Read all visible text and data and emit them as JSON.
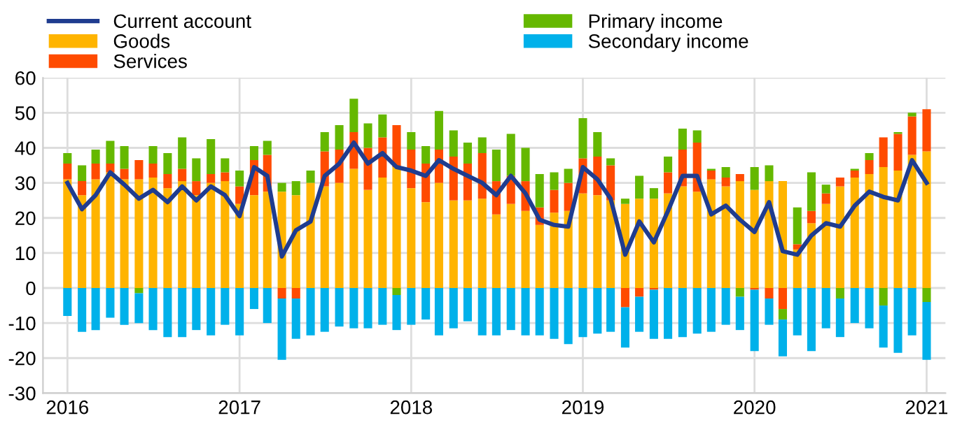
{
  "chart_data": {
    "type": "bar",
    "stacked": true,
    "x": [
      "2016-01",
      "2016-02",
      "2016-03",
      "2016-04",
      "2016-05",
      "2016-06",
      "2016-07",
      "2016-08",
      "2016-09",
      "2016-10",
      "2016-11",
      "2016-12",
      "2017-01",
      "2017-02",
      "2017-03",
      "2017-04",
      "2017-05",
      "2017-06",
      "2017-07",
      "2017-08",
      "2017-09",
      "2017-10",
      "2017-11",
      "2017-12",
      "2018-01",
      "2018-02",
      "2018-03",
      "2018-04",
      "2018-05",
      "2018-06",
      "2018-07",
      "2018-08",
      "2018-09",
      "2018-10",
      "2018-11",
      "2018-12",
      "2019-01",
      "2019-02",
      "2019-03",
      "2019-04",
      "2019-05",
      "2019-06",
      "2019-07",
      "2019-08",
      "2019-09",
      "2019-10",
      "2019-11",
      "2019-12",
      "2020-01",
      "2020-02",
      "2020-03",
      "2020-04",
      "2020-05",
      "2020-06",
      "2020-07",
      "2020-08",
      "2020-09",
      "2020-10",
      "2020-11",
      "2020-12",
      "2021-01"
    ],
    "series": [
      {
        "name": "Goods",
        "color": "#ffb400",
        "values": [
          31,
          26.5,
          31,
          33,
          31,
          31,
          31.5,
          28.5,
          30.5,
          26.5,
          30,
          30.5,
          24,
          26.5,
          27.5,
          27.5,
          26.5,
          30,
          29,
          30,
          34,
          28,
          31.5,
          34.5,
          28.5,
          24.5,
          30,
          25,
          25,
          25.5,
          21,
          24,
          22,
          18,
          21.5,
          22,
          27,
          26.5,
          25,
          24,
          25.5,
          25.5,
          27,
          29,
          27.5,
          31,
          29,
          30.5,
          28,
          30.5,
          30.5,
          11,
          18.5,
          24,
          29,
          31.5,
          32.5,
          34.5,
          33.5,
          38,
          39
        ]
      },
      {
        "name": "Services",
        "color": "#ff4b00",
        "values": [
          4.5,
          4,
          4.5,
          2.5,
          3,
          5.5,
          4,
          4,
          3.5,
          4,
          2.5,
          2.5,
          5,
          10,
          10.5,
          -3,
          -3,
          0,
          10,
          9.5,
          10.5,
          12,
          11.5,
          12,
          11,
          11,
          9.5,
          12.5,
          10.5,
          13,
          9.5,
          8,
          8.5,
          5,
          6.5,
          8,
          10,
          11,
          10,
          -5.5,
          -2.5,
          -0.5,
          6,
          10.5,
          14,
          2.5,
          2.5,
          2,
          -0.5,
          -3,
          -6,
          1.5,
          3.5,
          3,
          2.5,
          2,
          4,
          8.5,
          10.5,
          11,
          12
        ]
      },
      {
        "name": "Primary income",
        "color": "#65b800",
        "values": [
          3,
          4.5,
          4,
          6.5,
          6.5,
          -1.5,
          5,
          6,
          9,
          6.5,
          10,
          4,
          4.5,
          4,
          4,
          2.5,
          4,
          3.5,
          5.5,
          7,
          9.5,
          7,
          6.5,
          -2,
          5,
          5,
          11,
          7.5,
          6,
          4.5,
          9,
          12,
          9.5,
          9.5,
          5,
          4,
          11.5,
          7,
          2,
          1.5,
          6.5,
          3,
          4.5,
          6,
          3.5,
          0.5,
          3,
          -2.5,
          6.5,
          4.5,
          -3,
          10.5,
          11,
          2.5,
          -3,
          0.5,
          2,
          -5,
          0.5,
          1,
          -4
        ]
      },
      {
        "name": "Secondary income",
        "color": "#00b1ea",
        "values": [
          -8,
          -12.5,
          -12,
          -8.5,
          -10.5,
          -8.5,
          -12,
          -14,
          -14,
          -12,
          -13.5,
          -10.5,
          -13.5,
          -6,
          -10,
          -17.5,
          -11.5,
          -13.5,
          -12.5,
          -11,
          -11.5,
          -11.5,
          -10.5,
          -10,
          -10.5,
          -9,
          -13.5,
          -11.5,
          -9.5,
          -13.5,
          -13.5,
          -12,
          -13.5,
          -13.5,
          -14.5,
          -16,
          -14,
          -13,
          -12.5,
          -11.5,
          -10,
          -14,
          -14.5,
          -14,
          -13,
          -12.5,
          -10.5,
          -9.5,
          -17.5,
          -7.5,
          -10.5,
          -13.5,
          -18,
          -11.5,
          -11,
          -10,
          -11.5,
          -12,
          -18.5,
          -13.5,
          -16.5
        ]
      },
      {
        "name": "Current account",
        "type": "line",
        "color": "#1f3c8f",
        "values": [
          30,
          22.5,
          26.5,
          33,
          29.5,
          25.5,
          28,
          24.5,
          29,
          25,
          29,
          26.5,
          20.5,
          34.5,
          32,
          9,
          16.5,
          19,
          32,
          35.5,
          41.5,
          35.5,
          38.5,
          34.5,
          33.5,
          32,
          36.5,
          34,
          32,
          30,
          26.5,
          32,
          27,
          19.5,
          18,
          17.5,
          34.5,
          31,
          25.5,
          9.5,
          19,
          13,
          22,
          32,
          32,
          21,
          23.5,
          19.5,
          16,
          24.5,
          10.5,
          9.5,
          15,
          18.5,
          17.5,
          23.5,
          27.5,
          26,
          25,
          36.5,
          30
        ]
      }
    ],
    "xlim": [
      "2015-11-10",
      "2021-02-10"
    ],
    "xticks": [
      {
        "value": "2016-01",
        "label": "2016"
      },
      {
        "value": "2017-01",
        "label": "2017"
      },
      {
        "value": "2018-01",
        "label": "2018"
      },
      {
        "value": "2019-01",
        "label": "2019"
      },
      {
        "value": "2020-01",
        "label": "2020"
      },
      {
        "value": "2021-01",
        "label": "2021"
      }
    ],
    "ylim": [
      -30,
      60
    ],
    "yticks": [
      -30,
      -20,
      -10,
      0,
      10,
      20,
      30,
      40,
      50,
      60
    ],
    "grid": true,
    "legend": "top left",
    "line_style": "solid",
    "marker": "none"
  }
}
